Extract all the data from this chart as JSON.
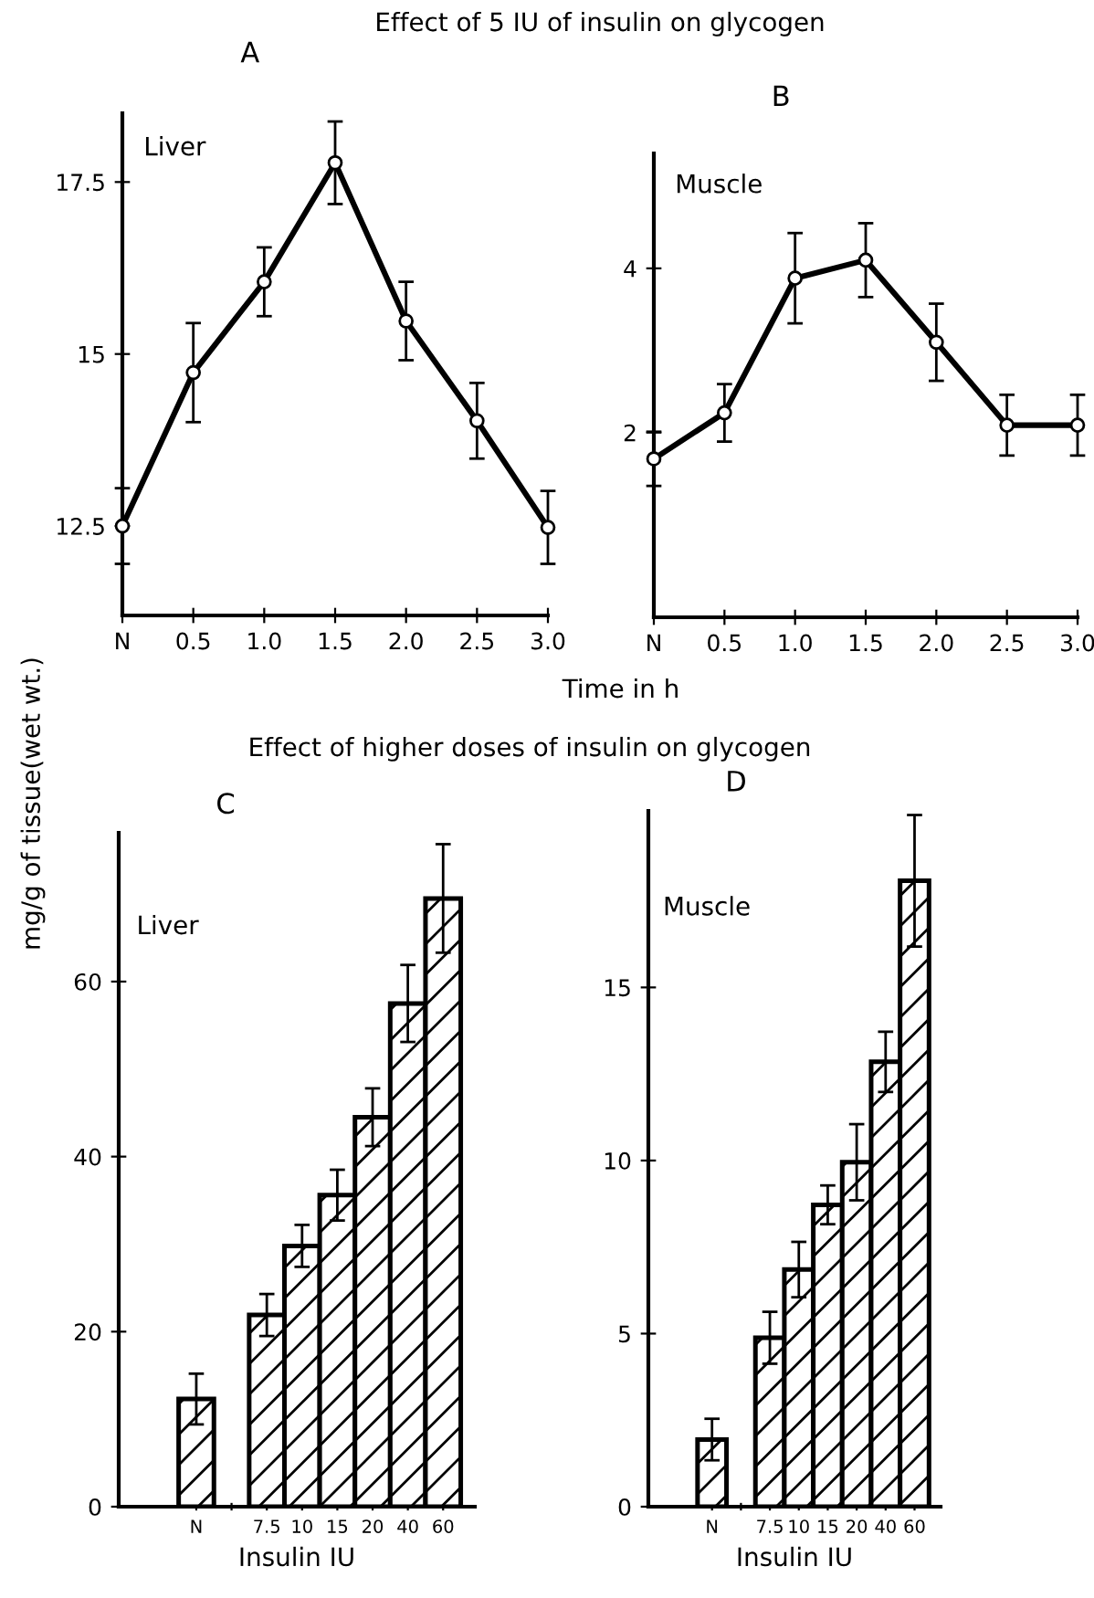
{
  "chart_data": [
    {
      "type": "line",
      "title": "Effect of 5 IU of insulin on glycogen",
      "subtitle": "A",
      "xlabel": "Time in h",
      "ylabel": "mg/g of tissue(wet wt.)",
      "categories": [
        "N",
        "0.5",
        "1.0",
        "1.5",
        "2.0",
        "2.5",
        "3.0"
      ],
      "marker": "circle",
      "line_style": "solid",
      "ylim": [
        11.2,
        18.5
      ],
      "yticks": [
        12.5,
        15,
        17.5
      ],
      "annotations": [
        "Liver"
      ],
      "series": [
        {
          "color": "#000000",
          "values": [
            12.5,
            14.73,
            16.05,
            17.78,
            15.48,
            14.03,
            12.48
          ],
          "errors": [
            0.55,
            0.72,
            0.5,
            0.6,
            0.57,
            0.55,
            0.53
          ]
        }
      ]
    },
    {
      "type": "line",
      "subtitle": "B",
      "categories": [
        "N",
        "0.5",
        "1.0",
        "1.5",
        "2.0",
        "2.5",
        "3.0"
      ],
      "marker": "circle",
      "line_style": "solid",
      "ylim": [
        -0.25,
        5.4
      ],
      "yticks": [
        2,
        4
      ],
      "annotations": [
        "Muscle"
      ],
      "series": [
        {
          "color": "#000000",
          "values": [
            1.68,
            2.24,
            3.88,
            4.1,
            3.1,
            2.09,
            2.09
          ],
          "errors": [
            0.33,
            0.35,
            0.55,
            0.45,
            0.47,
            0.37,
            0.37
          ]
        }
      ]
    },
    {
      "type": "bar",
      "title": "Effect of higher doses of insulin on glycogen",
      "subtitle": "C",
      "xlabel": "Insulin IU",
      "categories": [
        "N",
        null,
        "7.5",
        "10",
        "15",
        "20",
        "40",
        "60"
      ],
      "ylim": [
        0,
        77
      ],
      "yticks": [
        0,
        20,
        40,
        60
      ],
      "annotations": [
        "Liver"
      ],
      "series": [
        {
          "color": "#000000",
          "values": [
            12.3,
            null,
            21.9,
            29.8,
            35.6,
            44.5,
            57.5,
            69.5
          ],
          "errors": [
            2.9,
            null,
            2.4,
            2.4,
            2.9,
            3.3,
            4.4,
            6.2
          ]
        }
      ]
    },
    {
      "type": "bar",
      "subtitle": "D",
      "xlabel": "Insulin IU",
      "categories": [
        "N",
        null,
        "7.5",
        "10",
        "15",
        "20",
        "40",
        "60"
      ],
      "ylim": [
        0,
        20.1
      ],
      "yticks": [
        0,
        5,
        10,
        15
      ],
      "annotations": [
        "Muscle"
      ],
      "series": [
        {
          "color": "#000000",
          "values": [
            1.94,
            null,
            4.88,
            6.85,
            8.72,
            9.95,
            12.85,
            18.08
          ],
          "errors": [
            0.6,
            null,
            0.75,
            0.8,
            0.56,
            1.1,
            0.87,
            1.9
          ]
        }
      ]
    }
  ]
}
